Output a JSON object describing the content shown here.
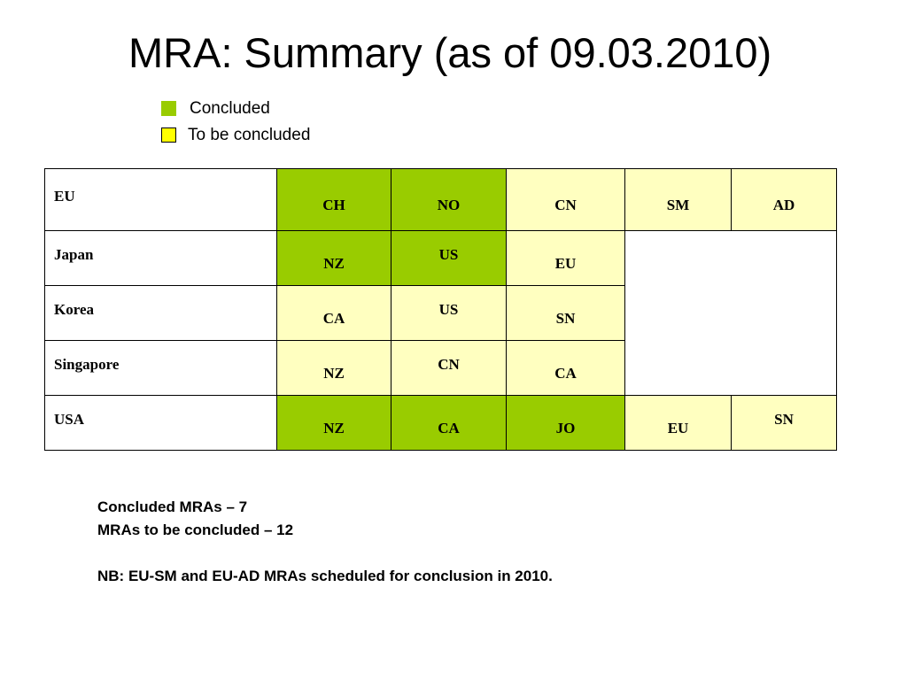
{
  "title": "MRA: Summary (as of 09.03.2010)",
  "legend": {
    "concluded": {
      "label": "Concluded",
      "color": "#99cc00"
    },
    "to_be_concluded": {
      "label": "To be concluded",
      "color": "#ffff00"
    }
  },
  "table": {
    "rows": [
      {
        "party": "EU",
        "cells": [
          {
            "text": "CH",
            "status": "concluded"
          },
          {
            "text": "NO",
            "status": "concluded"
          },
          {
            "text": "CN",
            "status": "to_be_concluded"
          },
          {
            "text": "SM",
            "status": "to_be_concluded"
          },
          {
            "text": "AD",
            "status": "to_be_concluded"
          }
        ]
      },
      {
        "party": "Japan",
        "cells": [
          {
            "text": "NZ",
            "status": "concluded"
          },
          {
            "text": "US",
            "status": "concluded"
          },
          {
            "text": "EU",
            "status": "to_be_concluded"
          }
        ]
      },
      {
        "party": "Korea",
        "cells": [
          {
            "text": "CA",
            "status": "to_be_concluded"
          },
          {
            "text": "US",
            "status": "to_be_concluded"
          },
          {
            "text": "SN",
            "status": "to_be_concluded"
          }
        ]
      },
      {
        "party": "Singapore",
        "cells": [
          {
            "text": "NZ",
            "status": "to_be_concluded"
          },
          {
            "text": "CN",
            "status": "to_be_concluded"
          },
          {
            "text": "CA",
            "status": "to_be_concluded"
          }
        ]
      },
      {
        "party": "USA",
        "cells": [
          {
            "text": "NZ",
            "status": "concluded"
          },
          {
            "text": "CA",
            "status": "concluded"
          },
          {
            "text": "JO",
            "status": "concluded"
          },
          {
            "text": "EU",
            "status": "to_be_concluded"
          },
          {
            "text": "SN",
            "status": "to_be_concluded"
          }
        ]
      }
    ]
  },
  "notes": {
    "concluded_count": "Concluded MRAs – 7",
    "to_be_concluded_count": "MRAs to be concluded – 12",
    "nb": "NB: EU-SM and EU-AD MRAs scheduled for conclusion in 2010."
  }
}
